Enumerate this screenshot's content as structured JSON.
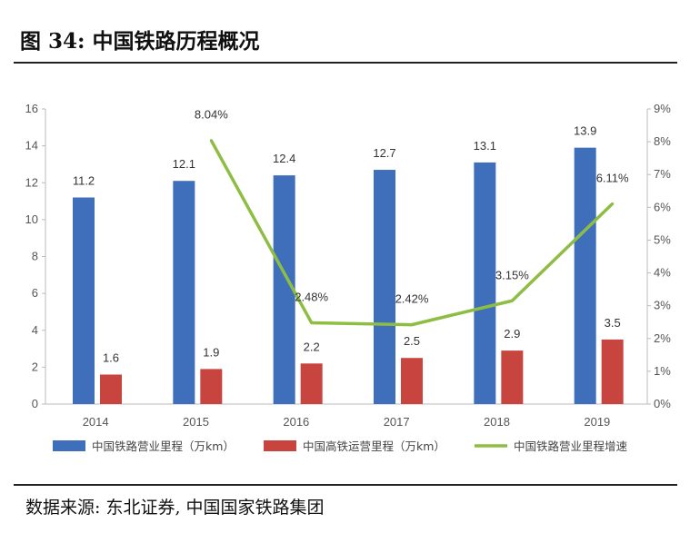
{
  "header": {
    "title": "图 34:  中国铁路历程概况"
  },
  "footer": {
    "source": "数据来源:  东北证券,  中国国家铁路集团"
  },
  "chart_data": {
    "type": "bar",
    "categories": [
      "2014",
      "2015",
      "2016",
      "2017",
      "2018",
      "2019"
    ],
    "series": [
      {
        "name": "中国铁路营业里程（万km）",
        "kind": "bar",
        "axis": "left",
        "color": "#3F6EBB",
        "values": [
          11.2,
          12.1,
          12.4,
          12.7,
          13.1,
          13.9
        ],
        "labels": [
          "11.2",
          "12.1",
          "12.4",
          "12.7",
          "13.1",
          "13.9"
        ]
      },
      {
        "name": "中国高铁运营里程（万km）",
        "kind": "bar",
        "axis": "left",
        "color": "#C8443E",
        "values": [
          1.6,
          1.9,
          2.2,
          2.5,
          2.9,
          3.5
        ],
        "labels": [
          "1.6",
          "1.9",
          "2.2",
          "2.5",
          "2.9",
          "3.5"
        ]
      },
      {
        "name": "中国铁路营业里程增速",
        "kind": "line",
        "axis": "right",
        "color": "#8DBE43",
        "values": [
          null,
          8.04,
          2.48,
          2.42,
          3.15,
          6.11
        ],
        "labels": [
          "",
          "8.04%",
          "2.48%",
          "2.42%",
          "3.15%",
          "6.11%"
        ]
      }
    ],
    "y_left": {
      "range": [
        0,
        16
      ],
      "ticks": [
        "0",
        "2",
        "4",
        "6",
        "8",
        "10",
        "12",
        "14",
        "16"
      ]
    },
    "y_right": {
      "range": [
        0,
        9
      ],
      "ticks": [
        "0%",
        "1%",
        "2%",
        "3%",
        "4%",
        "5%",
        "6%",
        "7%",
        "8%",
        "9%"
      ]
    },
    "grid": false,
    "legend": "bottom"
  }
}
